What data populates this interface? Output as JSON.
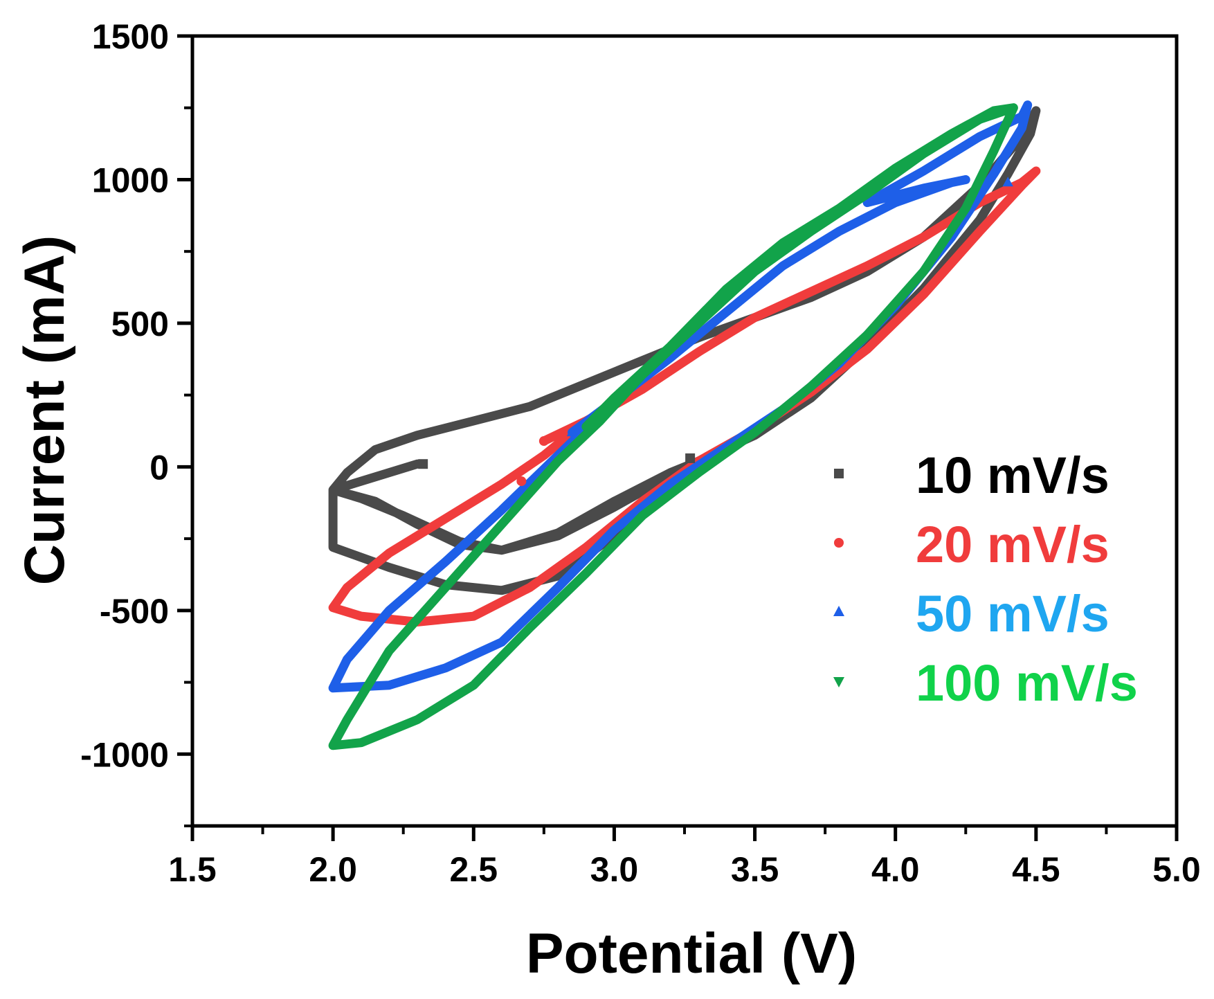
{
  "chart_data": {
    "type": "line",
    "title": "",
    "xlabel": "Potential (V)",
    "ylabel": "Current (mA)",
    "xlim": [
      1.5,
      5.0
    ],
    "ylim": [
      -1250,
      1500
    ],
    "xticks": [
      "1.5",
      "2.0",
      "2.5",
      "3.0",
      "3.5",
      "4.0",
      "4.5",
      "5.0"
    ],
    "xtick_values": [
      1.5,
      2.0,
      2.5,
      3.0,
      3.5,
      4.0,
      4.5,
      5.0
    ],
    "yticks": [
      "-1000",
      "-500",
      "0",
      "500",
      "1000",
      "1500"
    ],
    "ytick_values": [
      -1000,
      -500,
      0,
      500,
      1000,
      1500
    ],
    "grid": false,
    "legend_position": "bottom-right",
    "series": [
      {
        "name": "10 mV/s",
        "color": "#4a4a4a",
        "legend_color": "#000000",
        "marker": "square",
        "points": [
          [
            2.3,
            10
          ],
          [
            2.0,
            -80
          ],
          [
            2.05,
            -20
          ],
          [
            2.15,
            60
          ],
          [
            2.3,
            110
          ],
          [
            2.5,
            160
          ],
          [
            2.7,
            210
          ],
          [
            2.9,
            290
          ],
          [
            3.1,
            370
          ],
          [
            3.3,
            450
          ],
          [
            3.5,
            520
          ],
          [
            3.7,
            590
          ],
          [
            3.9,
            680
          ],
          [
            4.1,
            800
          ],
          [
            4.3,
            980
          ],
          [
            4.45,
            1150
          ],
          [
            4.5,
            1240
          ],
          [
            4.48,
            1160
          ],
          [
            4.4,
            1020
          ],
          [
            4.3,
            860
          ],
          [
            4.1,
            620
          ],
          [
            3.9,
            420
          ],
          [
            3.7,
            240
          ],
          [
            3.5,
            110
          ],
          [
            3.3,
            20
          ],
          [
            3.2,
            -20
          ],
          [
            3.0,
            -120
          ],
          [
            2.8,
            -230
          ],
          [
            2.6,
            -290
          ],
          [
            2.45,
            -270
          ],
          [
            2.3,
            -200
          ],
          [
            2.15,
            -120
          ],
          [
            2.0,
            -80
          ],
          [
            2.1,
            -110
          ],
          [
            2.25,
            -170
          ],
          [
            2.45,
            -260
          ],
          [
            2.6,
            -290
          ],
          [
            2.8,
            -240
          ],
          [
            3.0,
            -140
          ],
          [
            3.2,
            -30
          ],
          [
            3.3,
            20
          ],
          [
            3.5,
            110
          ],
          [
            3.7,
            240
          ],
          [
            3.9,
            420
          ],
          [
            4.1,
            620
          ],
          [
            4.3,
            860
          ],
          [
            4.4,
            1020
          ],
          [
            4.48,
            1160
          ],
          [
            4.5,
            1240
          ],
          [
            4.45,
            1150
          ],
          [
            4.3,
            980
          ],
          [
            4.1,
            800
          ],
          [
            3.9,
            680
          ],
          [
            3.7,
            590
          ],
          [
            3.5,
            520
          ],
          [
            3.3,
            450
          ],
          [
            3.1,
            370
          ],
          [
            2.9,
            290
          ],
          [
            2.7,
            210
          ],
          [
            2.5,
            160
          ],
          [
            2.3,
            110
          ],
          [
            2.15,
            60
          ],
          [
            2.05,
            -20
          ],
          [
            2.0,
            -80
          ],
          [
            2.0,
            -280
          ],
          [
            2.2,
            -350
          ],
          [
            2.4,
            -410
          ],
          [
            2.6,
            -430
          ],
          [
            2.8,
            -380
          ],
          [
            3.0,
            -240
          ],
          [
            3.2,
            -90
          ],
          [
            3.3,
            20
          ]
        ]
      },
      {
        "name": "20 mV/s",
        "color": "#f03c3c",
        "legend_color": "#f03c3c",
        "marker": "circle",
        "points": [
          [
            2.75,
            90
          ],
          [
            2.9,
            160
          ],
          [
            3.1,
            270
          ],
          [
            3.3,
            400
          ],
          [
            3.5,
            520
          ],
          [
            3.7,
            610
          ],
          [
            3.9,
            700
          ],
          [
            4.1,
            800
          ],
          [
            4.3,
            920
          ],
          [
            4.45,
            990
          ],
          [
            4.5,
            1030
          ],
          [
            4.45,
            980
          ],
          [
            4.3,
            820
          ],
          [
            4.1,
            600
          ],
          [
            3.9,
            410
          ],
          [
            3.7,
            260
          ],
          [
            3.5,
            130
          ],
          [
            3.3,
            20
          ],
          [
            3.1,
            -120
          ],
          [
            2.9,
            -280
          ],
          [
            2.7,
            -420
          ],
          [
            2.5,
            -520
          ],
          [
            2.3,
            -540
          ],
          [
            2.1,
            -520
          ],
          [
            2.0,
            -490
          ],
          [
            2.05,
            -420
          ],
          [
            2.2,
            -300
          ],
          [
            2.4,
            -180
          ],
          [
            2.6,
            -60
          ],
          [
            2.75,
            40
          ],
          [
            2.9,
            160
          ],
          [
            3.1,
            270
          ],
          [
            3.3,
            400
          ],
          [
            3.5,
            520
          ],
          [
            3.7,
            610
          ],
          [
            3.9,
            700
          ],
          [
            4.1,
            800
          ],
          [
            4.3,
            920
          ],
          [
            4.45,
            990
          ],
          [
            4.5,
            1030
          ],
          [
            4.45,
            980
          ],
          [
            4.3,
            820
          ],
          [
            4.1,
            600
          ],
          [
            3.9,
            410
          ],
          [
            3.7,
            260
          ],
          [
            3.5,
            130
          ],
          [
            3.3,
            20
          ],
          [
            3.1,
            -120
          ],
          [
            2.9,
            -280
          ],
          [
            2.7,
            -420
          ],
          [
            2.5,
            -520
          ],
          [
            2.3,
            -540
          ],
          [
            2.1,
            -520
          ],
          [
            2.0,
            -490
          ]
        ]
      },
      {
        "name": "50 mV/s",
        "color": "#1e5fe8",
        "legend_color": "#1fa6f0",
        "marker": "triangle-up",
        "points": [
          [
            2.85,
            120
          ],
          [
            3.0,
            230
          ],
          [
            3.2,
            380
          ],
          [
            3.4,
            540
          ],
          [
            3.6,
            700
          ],
          [
            3.8,
            820
          ],
          [
            4.0,
            920
          ],
          [
            4.2,
            990
          ],
          [
            4.25,
            1000
          ],
          [
            4.1,
            970
          ],
          [
            3.9,
            920
          ],
          [
            4.1,
            1030
          ],
          [
            4.3,
            1150
          ],
          [
            4.45,
            1220
          ],
          [
            4.47,
            1260
          ],
          [
            4.45,
            1180
          ],
          [
            4.35,
            1020
          ],
          [
            4.2,
            800
          ],
          [
            4.0,
            560
          ],
          [
            3.8,
            360
          ],
          [
            3.6,
            200
          ],
          [
            3.4,
            70
          ],
          [
            3.2,
            -60
          ],
          [
            3.0,
            -220
          ],
          [
            2.8,
            -420
          ],
          [
            2.6,
            -610
          ],
          [
            2.4,
            -700
          ],
          [
            2.2,
            -760
          ],
          [
            2.0,
            -770
          ],
          [
            2.05,
            -670
          ],
          [
            2.2,
            -500
          ],
          [
            2.4,
            -330
          ],
          [
            2.6,
            -150
          ],
          [
            2.8,
            40
          ],
          [
            3.0,
            230
          ],
          [
            3.2,
            380
          ],
          [
            3.4,
            540
          ],
          [
            3.6,
            700
          ],
          [
            3.8,
            820
          ],
          [
            4.0,
            920
          ],
          [
            4.2,
            990
          ],
          [
            4.25,
            1000
          ],
          [
            4.1,
            970
          ],
          [
            3.9,
            920
          ],
          [
            4.1,
            1030
          ],
          [
            4.3,
            1150
          ],
          [
            4.45,
            1220
          ],
          [
            4.47,
            1260
          ],
          [
            4.45,
            1180
          ],
          [
            4.35,
            1020
          ],
          [
            4.2,
            800
          ],
          [
            4.0,
            560
          ],
          [
            3.8,
            360
          ],
          [
            3.6,
            200
          ],
          [
            3.4,
            70
          ],
          [
            3.2,
            -60
          ],
          [
            3.0,
            -220
          ],
          [
            2.8,
            -420
          ],
          [
            2.6,
            -610
          ],
          [
            2.4,
            -700
          ],
          [
            2.2,
            -760
          ],
          [
            2.0,
            -770
          ]
        ]
      },
      {
        "name": "100 mV/s",
        "color": "#12a34a",
        "legend_color": "#10d24a",
        "marker": "triangle-down",
        "points": [
          [
            2.9,
            140
          ],
          [
            3.0,
            240
          ],
          [
            3.2,
            420
          ],
          [
            3.4,
            620
          ],
          [
            3.6,
            780
          ],
          [
            3.8,
            900
          ],
          [
            4.0,
            1040
          ],
          [
            4.2,
            1160
          ],
          [
            4.35,
            1240
          ],
          [
            4.42,
            1250
          ],
          [
            4.35,
            1100
          ],
          [
            4.25,
            900
          ],
          [
            4.1,
            680
          ],
          [
            3.9,
            460
          ],
          [
            3.7,
            280
          ],
          [
            3.5,
            120
          ],
          [
            3.3,
            -20
          ],
          [
            3.1,
            -170
          ],
          [
            2.9,
            -370
          ],
          [
            2.7,
            -560
          ],
          [
            2.5,
            -760
          ],
          [
            2.3,
            -880
          ],
          [
            2.1,
            -960
          ],
          [
            2.0,
            -970
          ],
          [
            2.05,
            -880
          ],
          [
            2.2,
            -640
          ],
          [
            2.4,
            -420
          ],
          [
            2.6,
            -200
          ],
          [
            2.8,
            20
          ],
          [
            2.95,
            160
          ],
          [
            3.1,
            320
          ],
          [
            3.3,
            500
          ],
          [
            3.5,
            680
          ],
          [
            3.7,
            820
          ],
          [
            3.9,
            950
          ],
          [
            4.1,
            1090
          ],
          [
            4.3,
            1210
          ],
          [
            4.42,
            1250
          ],
          [
            4.35,
            1100
          ],
          [
            4.25,
            900
          ],
          [
            4.1,
            680
          ],
          [
            3.9,
            460
          ],
          [
            3.7,
            280
          ],
          [
            3.5,
            120
          ],
          [
            3.3,
            -20
          ],
          [
            3.1,
            -170
          ],
          [
            2.9,
            -370
          ],
          [
            2.7,
            -560
          ],
          [
            2.5,
            -760
          ],
          [
            2.3,
            -880
          ],
          [
            2.1,
            -960
          ],
          [
            2.0,
            -970
          ]
        ]
      }
    ],
    "markers": [
      {
        "series": 0,
        "x": 2.32,
        "y": 10
      },
      {
        "series": 0,
        "x": 3.27,
        "y": 30
      },
      {
        "series": 1,
        "x": 2.75,
        "y": 90
      },
      {
        "series": 1,
        "x": 2.67,
        "y": -50
      },
      {
        "series": 2,
        "x": 2.85,
        "y": 120
      },
      {
        "series": 2,
        "x": 4.4,
        "y": 990
      },
      {
        "series": 3,
        "x": 2.91,
        "y": 140
      }
    ]
  }
}
